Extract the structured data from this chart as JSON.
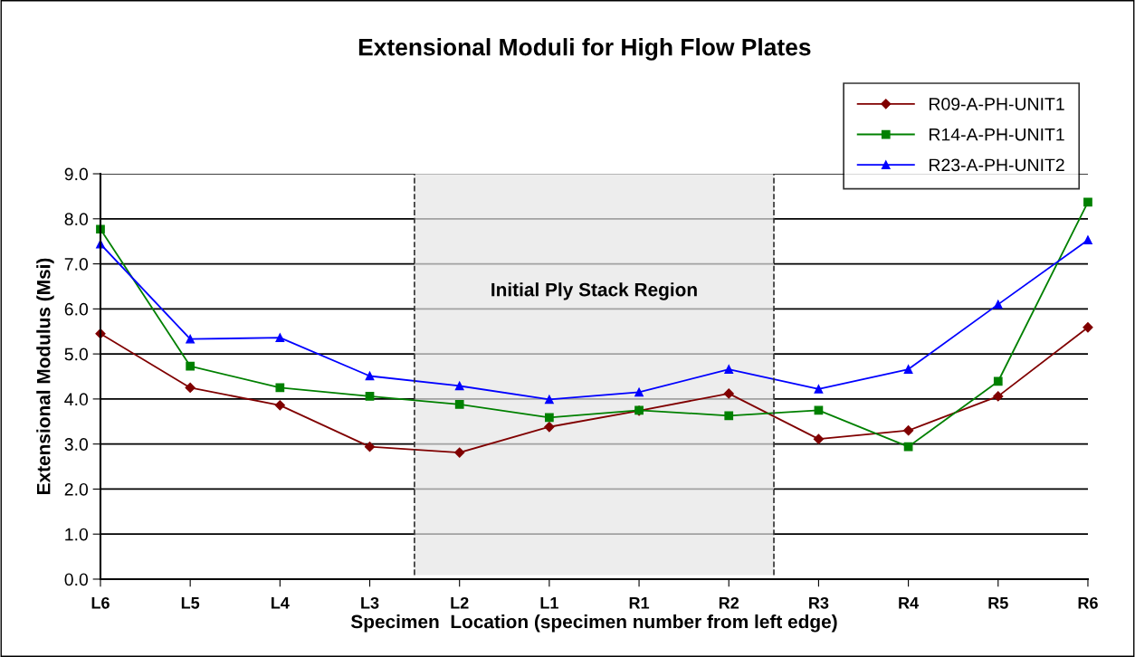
{
  "chart_data": {
    "type": "line",
    "title": "Extensional Moduli for High Flow Plates",
    "xlabel": "Specimen  Location (specimen number from left edge)",
    "ylabel": "Extensional Modulus (Msi)",
    "categories": [
      "L6",
      "L5",
      "L4",
      "L3",
      "L2",
      "L1",
      "R1",
      "R2",
      "R3",
      "R4",
      "R5",
      "R6"
    ],
    "series": [
      {
        "name": "R09-A-PH-UNIT1",
        "color": "#800000",
        "marker": "diamond",
        "values": [
          5.45,
          4.25,
          3.86,
          2.94,
          2.81,
          3.38,
          3.74,
          4.12,
          3.11,
          3.3,
          4.06,
          5.59
        ]
      },
      {
        "name": "R14-A-PH-UNIT1",
        "color": "#008000",
        "marker": "square",
        "values": [
          7.77,
          4.73,
          4.25,
          4.06,
          3.88,
          3.59,
          3.75,
          3.63,
          3.75,
          2.94,
          4.39,
          8.37
        ]
      },
      {
        "name": "R23-A-PH-UNIT2",
        "color": "#0000ff",
        "marker": "triangle",
        "values": [
          7.44,
          5.33,
          5.36,
          4.51,
          4.29,
          3.99,
          4.15,
          4.66,
          4.22,
          4.66,
          6.1,
          7.53
        ]
      }
    ],
    "ylim": [
      0,
      9
    ],
    "yticks": [
      {
        "value": 0,
        "label": "0.0"
      },
      {
        "value": 1,
        "label": "1.0"
      },
      {
        "value": 2,
        "label": "2.0"
      },
      {
        "value": 3,
        "label": "3.0"
      },
      {
        "value": 4,
        "label": "4.0"
      },
      {
        "value": 5,
        "label": "5.0"
      },
      {
        "value": 6,
        "label": "6.0"
      },
      {
        "value": 7,
        "label": "7.0"
      },
      {
        "value": 8,
        "label": "8.0"
      },
      {
        "value": 9,
        "label": "9.0"
      }
    ],
    "annotations": [
      "Initial Ply Stack Region"
    ],
    "grid": "y",
    "legend": "top right",
    "line_style": "solid"
  }
}
